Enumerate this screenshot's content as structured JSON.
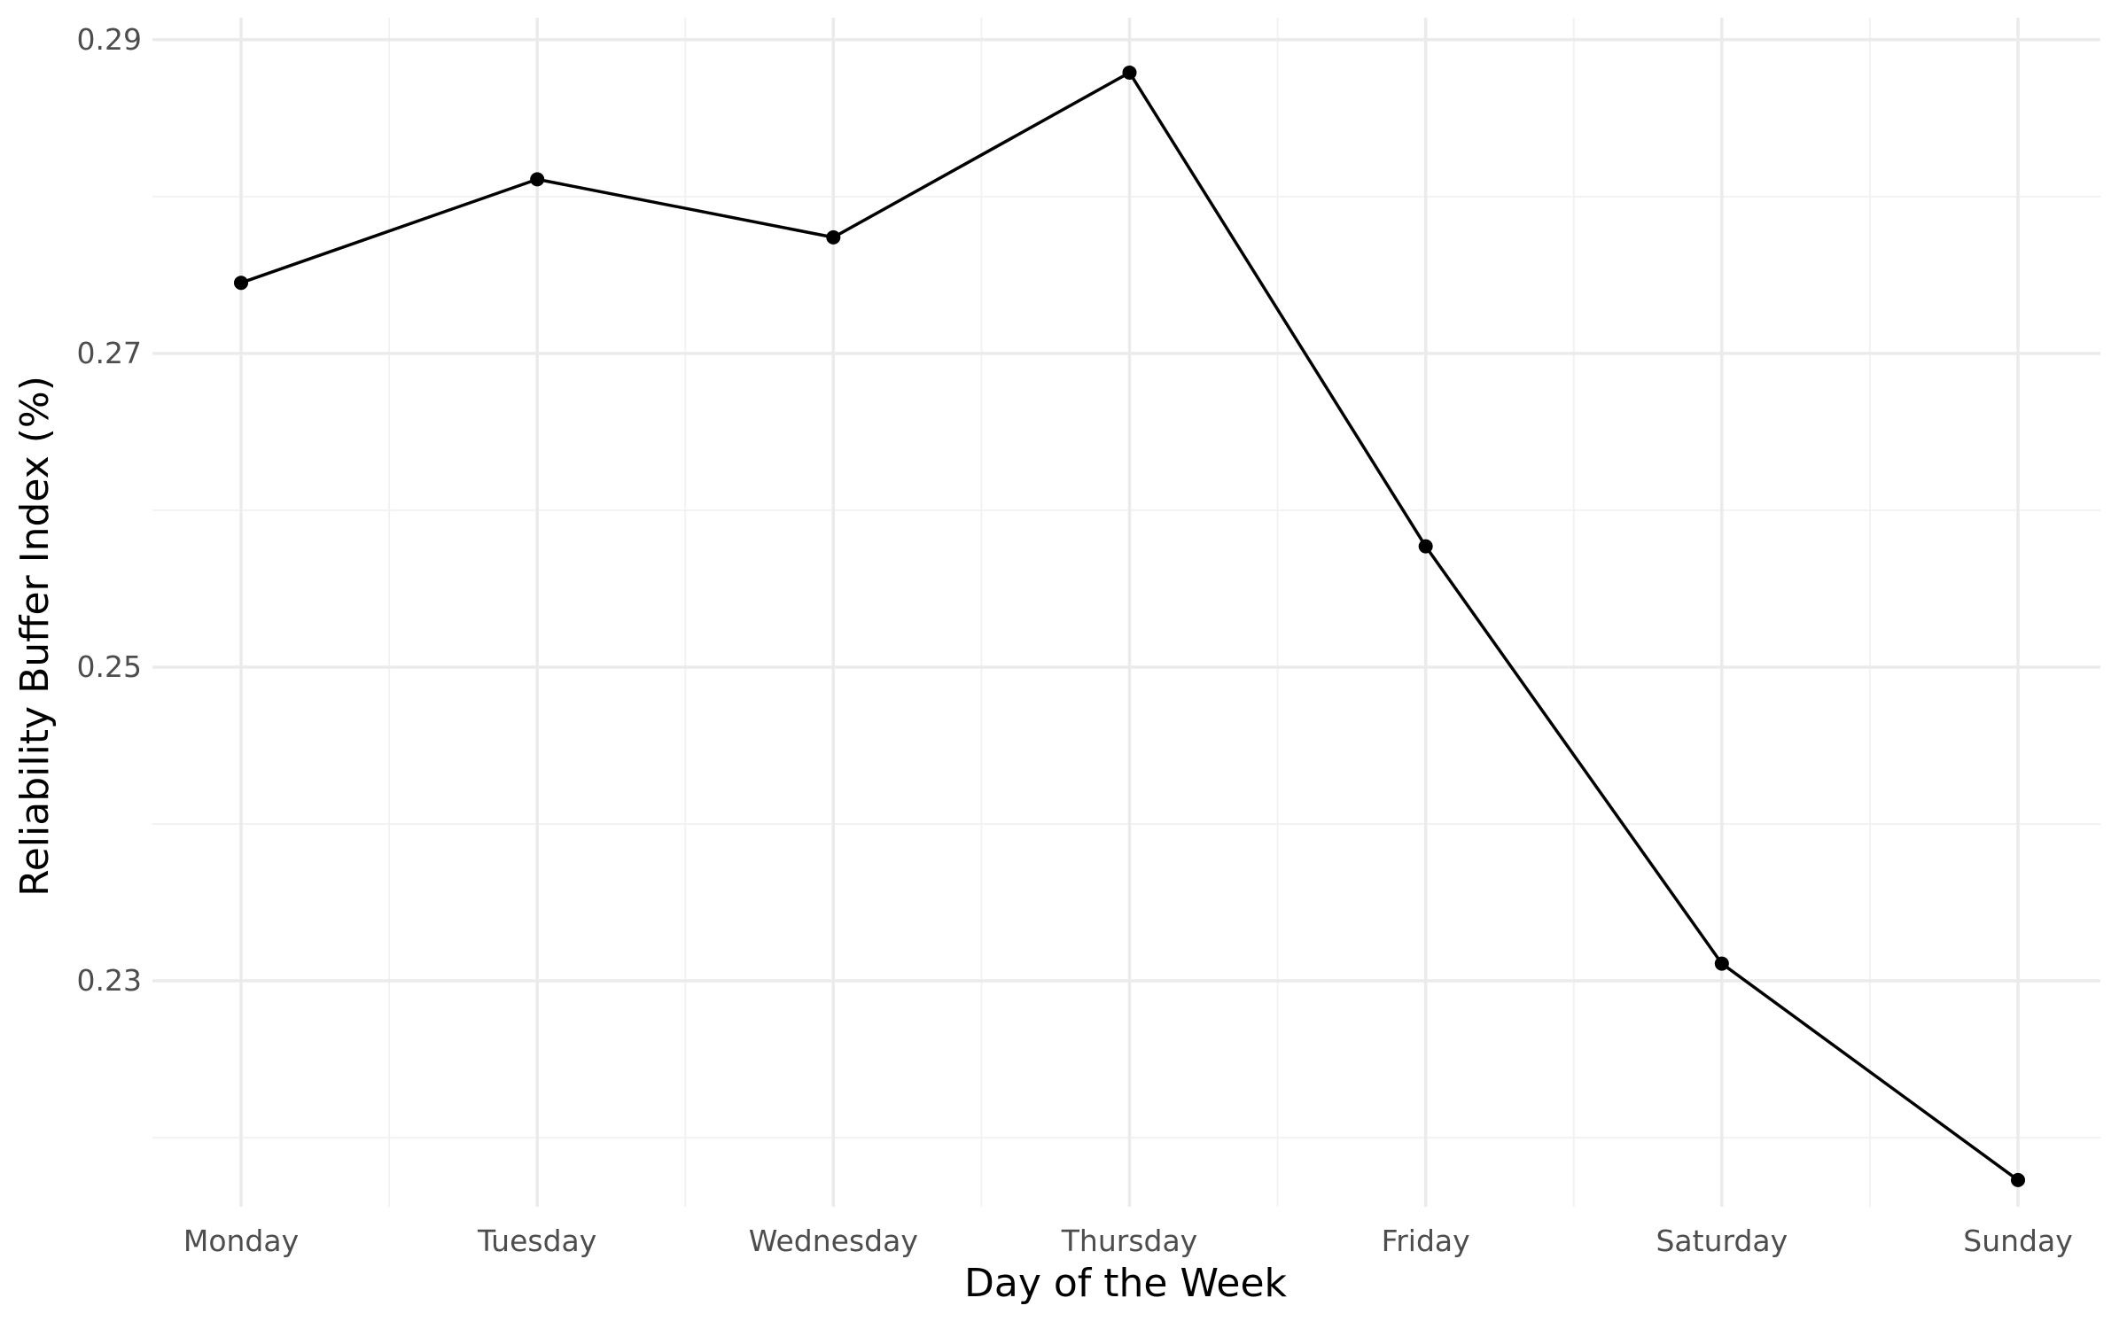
{
  "chart_data": {
    "type": "line",
    "title": "",
    "xlabel": "Day of the Week",
    "ylabel": "Reliability Buffer Index (%)",
    "categories": [
      "Monday",
      "Tuesday",
      "Wednesday",
      "Thursday",
      "Friday",
      "Saturday",
      "Sunday"
    ],
    "series": [
      {
        "values": [
          0.2745,
          0.2811,
          0.2774,
          0.2879,
          0.2577,
          0.2311,
          0.2173
        ]
      }
    ],
    "ylim": [
      0.2156,
      0.2914
    ],
    "yticks": [
      0.23,
      0.25,
      0.27,
      0.29
    ],
    "ytick_labels": [
      "0.23",
      "0.25",
      "0.27",
      "0.29"
    ],
    "grid": true,
    "legend": "none",
    "colors": {
      "line": "#000000",
      "point": "#000000",
      "grid_major": "#ebebeb",
      "grid_minor": "#f2f2f2",
      "tick_text": "#4d4d4d"
    }
  }
}
